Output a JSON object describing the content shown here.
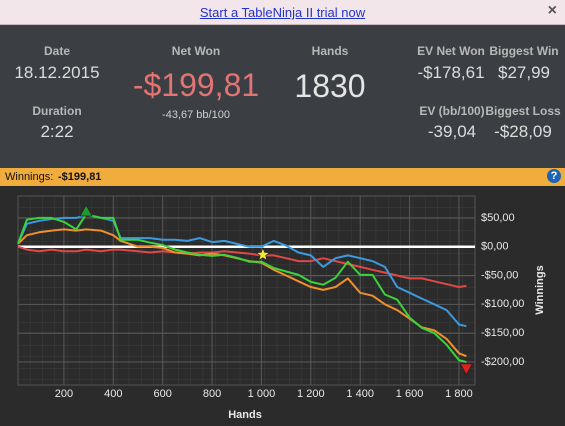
{
  "banner": {
    "link": "Start a TableNinja II trial now",
    "close": "×"
  },
  "stats": {
    "date": {
      "label": "Date",
      "value": "18.12.2015"
    },
    "duration": {
      "label": "Duration",
      "value": "2:22"
    },
    "net_won": {
      "label": "Net Won",
      "value": "-$199,81",
      "sub": "-43,67 bb/100"
    },
    "hands": {
      "label": "Hands",
      "value": "1830"
    },
    "ev_net_won": {
      "label": "EV Net Won",
      "value": "-$178,61"
    },
    "biggest_win": {
      "label": "Biggest Win",
      "value": "$27,99"
    },
    "ev_bb": {
      "label": "EV (bb/100)",
      "value": "-39,04"
    },
    "biggest_loss": {
      "label": "Biggest Loss",
      "value": "-$28,09"
    }
  },
  "winnings_bar": {
    "label": "Winnings:",
    "value": "-$199,81",
    "help": "?"
  },
  "chart_data": {
    "type": "line",
    "x_label": "Hands",
    "y_label": "Winnings",
    "x": [
      14,
      50,
      100,
      150,
      200,
      250,
      290,
      350,
      400,
      430,
      500,
      550,
      600,
      650,
      700,
      750,
      800,
      850,
      900,
      950,
      1000,
      1050,
      1100,
      1150,
      1200,
      1250,
      1300,
      1350,
      1400,
      1450,
      1500,
      1550,
      1600,
      1650,
      1700,
      1750,
      1800,
      1830
    ],
    "series": [
      {
        "color": "#e04848",
        "values": [
          0,
          -5,
          -8,
          -5,
          -8,
          -8,
          -5,
          -8,
          -5,
          -5,
          -8,
          -10,
          -8,
          -10,
          -12,
          -10,
          -10,
          -8,
          -10,
          -12,
          -15,
          -15,
          -20,
          -25,
          -25,
          -20,
          -25,
          -30,
          -35,
          -40,
          -45,
          -50,
          -55,
          -55,
          -60,
          -65,
          -70,
          -68
        ]
      },
      {
        "color": "#3a9be0",
        "values": [
          5,
          40,
          45,
          48,
          50,
          50,
          55,
          50,
          45,
          15,
          15,
          15,
          12,
          12,
          10,
          15,
          8,
          10,
          5,
          0,
          0,
          10,
          2,
          -10,
          -15,
          -35,
          -20,
          -15,
          -20,
          -25,
          -35,
          -70,
          -80,
          -90,
          -100,
          -110,
          -135,
          -138
        ]
      },
      {
        "color": "#f0902a",
        "values": [
          5,
          20,
          25,
          28,
          30,
          28,
          30,
          28,
          20,
          10,
          0,
          0,
          -2,
          -10,
          -12,
          -15,
          -12,
          -15,
          -20,
          -25,
          -28,
          -40,
          -50,
          -60,
          -70,
          -75,
          -70,
          -55,
          -80,
          -85,
          -100,
          -110,
          -125,
          -140,
          -145,
          -160,
          -185,
          -190
        ]
      },
      {
        "color": "#3cd23c",
        "values": [
          5,
          47,
          50,
          50,
          43,
          30,
          56,
          50,
          50,
          12,
          12,
          7,
          3,
          -5,
          -10,
          -14,
          -16,
          -14,
          -19,
          -26,
          -26,
          -37,
          -43,
          -49,
          -61,
          -66,
          -54,
          -26,
          -49,
          -49,
          -83,
          -92,
          -123,
          -141,
          -150,
          -170,
          -197,
          -200
        ]
      }
    ],
    "markers": [
      {
        "shape": "triangle-up",
        "color": "#1f9a2a",
        "x": 290,
        "y": 62
      },
      {
        "shape": "star",
        "color": "#f5e63a",
        "x": 1006,
        "y": -14
      },
      {
        "shape": "triangle-down",
        "color": "#e02020",
        "x": 1830,
        "y": -212
      }
    ],
    "xlim": [
      14,
      1865
    ],
    "ylim": [
      -240,
      88
    ],
    "xticks": [
      {
        "value": 200,
        "label": "200"
      },
      {
        "value": 400,
        "label": "400"
      },
      {
        "value": 600,
        "label": "600"
      },
      {
        "value": 800,
        "label": "800"
      },
      {
        "value": 1000,
        "label": "1 000"
      },
      {
        "value": 1200,
        "label": "1 200"
      },
      {
        "value": 1400,
        "label": "1 400"
      },
      {
        "value": 1600,
        "label": "1 600"
      },
      {
        "value": 1800,
        "label": "1 800"
      }
    ],
    "yticks": [
      {
        "value": 50,
        "label": "$50,00"
      },
      {
        "value": 0,
        "label": "$0,00"
      },
      {
        "value": -50,
        "label": "-$50,00"
      },
      {
        "value": -100,
        "label": "-$100,00"
      },
      {
        "value": -150,
        "label": "-$150,00"
      },
      {
        "value": -200,
        "label": "-$200,00"
      }
    ],
    "grid": true
  }
}
